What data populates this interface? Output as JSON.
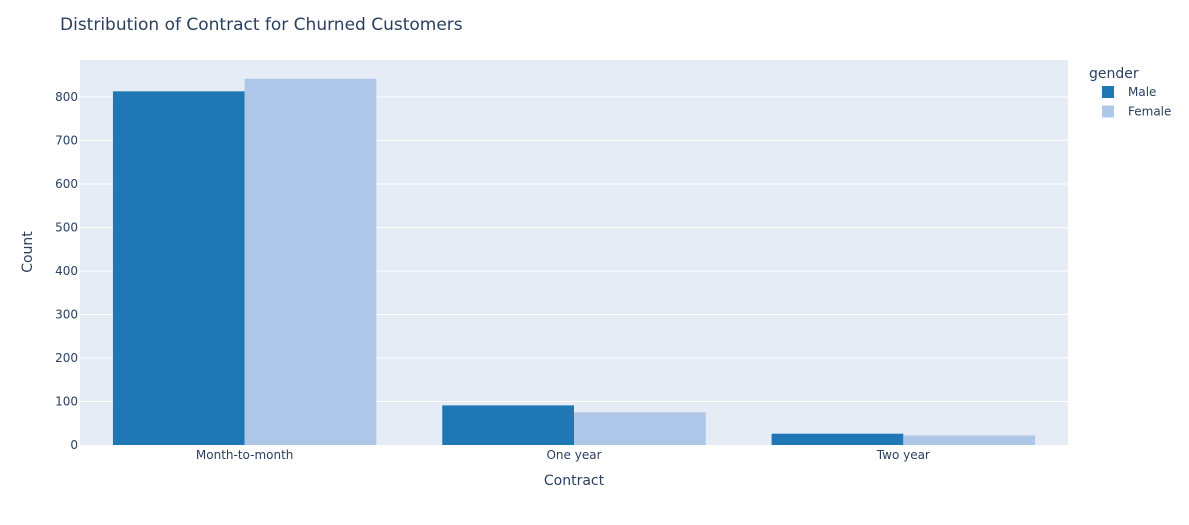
{
  "chart_data": {
    "type": "bar",
    "title": "Distribution of Contract for Churned Customers",
    "xlabel": "Contract",
    "ylabel": "Count",
    "categories": [
      "Month-to-month",
      "One year",
      "Two year"
    ],
    "series": [
      {
        "name": "Male",
        "color": "#1f77b4",
        "values": [
          813,
          91,
          26
        ]
      },
      {
        "name": "Female",
        "color": "#aec7e8",
        "values": [
          842,
          75,
          22
        ]
      }
    ],
    "ylim": [
      0,
      885
    ],
    "yticks": [
      0,
      100,
      200,
      300,
      400,
      500,
      600,
      700,
      800
    ],
    "ytick_labels": [
      "0",
      "100",
      "200",
      "300",
      "400",
      "500",
      "600",
      "700",
      "800"
    ],
    "grid": true,
    "legend": {
      "title": "gender",
      "position": "right"
    },
    "plot_bgcolor": "#e5ecf6",
    "gridcolor": "#ffffff"
  }
}
